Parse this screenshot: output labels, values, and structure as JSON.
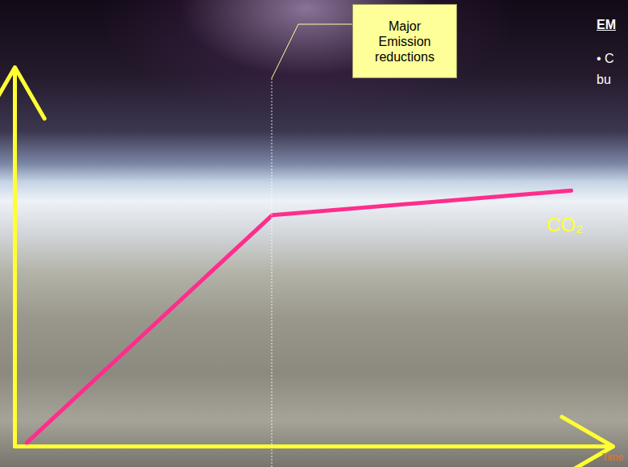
{
  "chart_data": {
    "type": "line",
    "x_label": "Time",
    "x": [
      2,
      43,
      93
    ],
    "series": [
      {
        "name": "CO₂",
        "color": "#ff2d8c",
        "values": [
          1,
          61,
          67.5
        ]
      }
    ],
    "xlim": [
      0,
      100
    ],
    "ylim": [
      0,
      100
    ],
    "tick_labels": false,
    "grid": false,
    "annotations": [
      {
        "text": "Major Emission reductions",
        "x": 43
      }
    ],
    "text_panel": {
      "heading": "EM",
      "lines": [
        "• C",
        "bu"
      ]
    }
  }
}
